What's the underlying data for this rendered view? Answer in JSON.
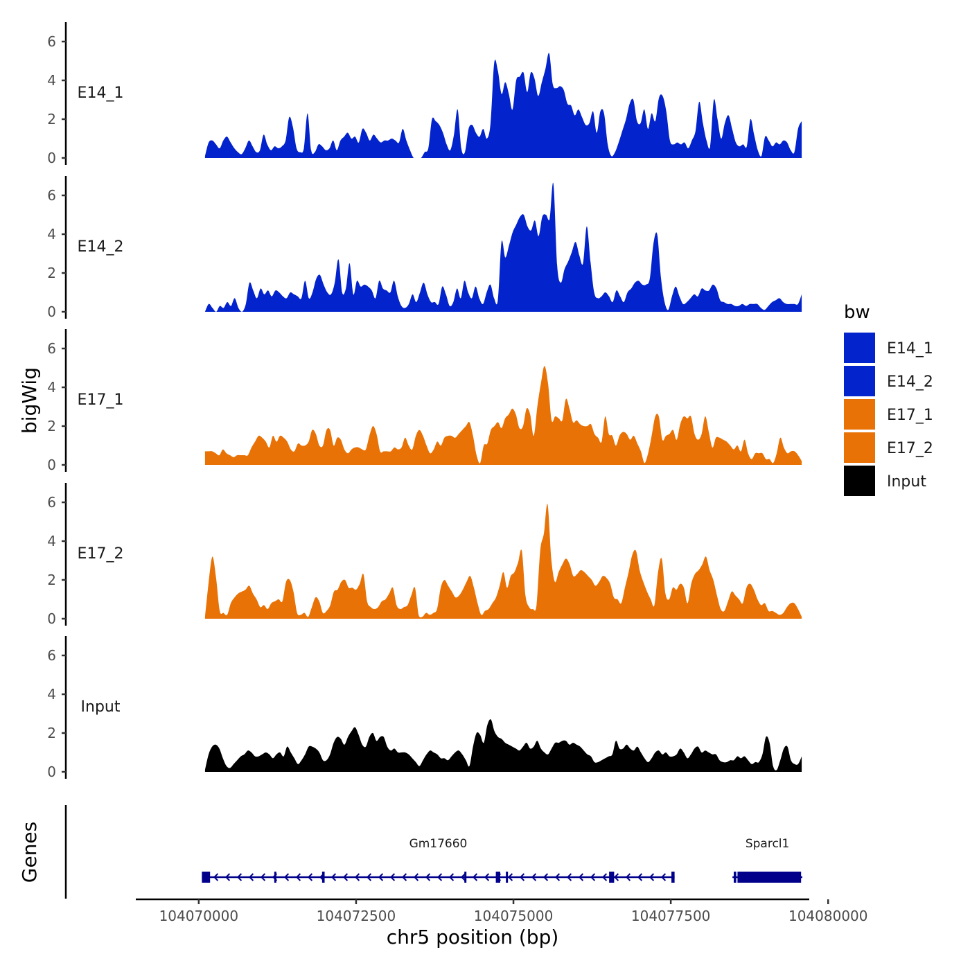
{
  "chart_data": {
    "type": "area",
    "y_axis_title": "bigWig",
    "genes_axis_title": "Genes",
    "x_axis_title": "chr5 position (bp)",
    "xlim": [
      104069000,
      104079700
    ],
    "ylim": [
      0,
      7
    ],
    "y_ticks": [
      "0",
      "2",
      "4",
      "6"
    ],
    "x_ticks": [
      {
        "value": 104070000,
        "label": "104070000"
      },
      {
        "value": 104072500,
        "label": "104072500"
      },
      {
        "value": 104075000,
        "label": "104075000"
      },
      {
        "value": 104077500,
        "label": "104077500"
      },
      {
        "value": 104080000,
        "label": "104080000"
      }
    ],
    "legend": {
      "title": "bw",
      "entries": [
        {
          "label": "E14_1",
          "color": "#0323CC"
        },
        {
          "label": "E14_2",
          "color": "#0323CC"
        },
        {
          "label": "E17_1",
          "color": "#E87206"
        },
        {
          "label": "E17_2",
          "color": "#E87206"
        },
        {
          "label": "Input",
          "color": "#000000"
        }
      ]
    },
    "x_start": 104070100,
    "x_end": 104079580,
    "series": [
      {
        "name": "E14_1",
        "color": "#0323CC",
        "values": [
          0.1,
          0.8,
          0.9,
          0.7,
          0.5,
          0.9,
          1.1,
          0.8,
          0.5,
          0.3,
          0.2,
          0.5,
          0.9,
          0.6,
          0.3,
          0.4,
          1.2,
          0.7,
          0.4,
          0.6,
          0.5,
          0.6,
          0.9,
          2.1,
          1.6,
          0.5,
          0.3,
          0.5,
          2.3,
          0.4,
          0.3,
          0.7,
          0.6,
          0.4,
          0.5,
          0.9,
          0.4,
          0.9,
          1.1,
          1.3,
          1.0,
          1.1,
          0.8,
          1.5,
          1.3,
          0.9,
          1.2,
          1.0,
          0.8,
          0.9,
          0.9,
          1.0,
          0.9,
          0.8,
          1.5,
          0.9,
          0.4,
          0.0,
          0.0,
          0.0,
          0.3,
          0.5,
          2.0,
          1.9,
          1.7,
          1.3,
          0.7,
          0.4,
          1.2,
          2.5,
          0.5,
          0.3,
          1.5,
          1.7,
          1.3,
          1.1,
          1.5,
          1.0,
          1.8,
          4.9,
          4.5,
          3.3,
          3.9,
          3.3,
          2.5,
          4.0,
          4.2,
          4.4,
          3.4,
          4.4,
          4.1,
          3.2,
          3.9,
          4.6,
          5.4,
          3.8,
          3.6,
          3.7,
          3.5,
          2.8,
          2.7,
          2.2,
          2.5,
          2.1,
          1.7,
          1.8,
          2.4,
          1.3,
          2.4,
          2.3,
          0.7,
          0.1,
          0.3,
          0.8,
          1.4,
          2.0,
          2.8,
          3.0,
          1.9,
          1.8,
          2.5,
          1.5,
          2.3,
          1.9,
          3.1,
          3.2,
          2.4,
          0.9,
          0.7,
          0.8,
          0.7,
          0.8,
          0.5,
          0.9,
          1.4,
          2.9,
          1.8,
          0.9,
          0.6,
          3.0,
          2.0,
          1.0,
          1.8,
          2.2,
          1.5,
          0.8,
          0.6,
          0.7,
          0.6,
          2.0,
          1.2,
          0.4,
          0.1,
          1.1,
          0.9,
          0.6,
          0.8,
          0.7,
          0.9,
          0.8,
          0.4,
          0.3,
          1.5,
          1.9
        ]
      },
      {
        "name": "E14_2",
        "color": "#0323CC",
        "values": [
          0.0,
          0.4,
          0.2,
          0.0,
          0.3,
          0.2,
          0.5,
          0.3,
          0.7,
          0.2,
          0.0,
          0.4,
          1.5,
          1.1,
          0.7,
          1.2,
          0.9,
          1.1,
          0.8,
          1.1,
          1.0,
          0.8,
          0.7,
          1.0,
          0.9,
          0.8,
          0.7,
          1.6,
          0.7,
          1.0,
          1.7,
          1.9,
          1.4,
          1.0,
          0.9,
          1.5,
          2.7,
          1.0,
          1.2,
          2.5,
          0.9,
          1.6,
          1.3,
          1.4,
          1.3,
          1.1,
          0.7,
          1.6,
          1.2,
          1.1,
          1.0,
          1.6,
          0.8,
          0.3,
          0.2,
          0.4,
          0.9,
          0.5,
          1.0,
          1.5,
          0.9,
          0.5,
          0.5,
          0.4,
          1.3,
          0.9,
          0.3,
          0.5,
          1.2,
          0.7,
          1.6,
          1.0,
          0.7,
          1.3,
          0.7,
          0.4,
          1.0,
          1.4,
          0.7,
          0.6,
          3.6,
          2.8,
          3.4,
          4.1,
          4.5,
          4.9,
          5.0,
          4.4,
          4.2,
          4.7,
          3.9,
          4.9,
          5.0,
          4.8,
          6.6,
          2.4,
          1.5,
          2.2,
          2.6,
          3.1,
          3.6,
          2.9,
          2.5,
          4.4,
          2.6,
          1.0,
          0.7,
          0.8,
          1.0,
          0.8,
          0.5,
          1.1,
          0.8,
          0.5,
          1.0,
          1.2,
          1.5,
          1.6,
          1.4,
          1.4,
          1.7,
          3.5,
          4.0,
          1.8,
          0.5,
          0.1,
          0.8,
          1.3,
          0.8,
          0.4,
          0.5,
          0.7,
          0.9,
          0.8,
          1.2,
          1.1,
          1.1,
          1.4,
          1.2,
          0.6,
          0.5,
          0.4,
          0.4,
          0.3,
          0.3,
          0.4,
          0.3,
          0.4,
          0.4,
          0.4,
          0.2,
          0.1,
          0.3,
          0.5,
          0.6,
          0.7,
          0.5,
          0.4,
          0.4,
          0.4,
          0.4,
          0.9
        ]
      },
      {
        "name": "E17_1",
        "color": "#E87206",
        "values": [
          0.7,
          0.7,
          0.7,
          0.6,
          0.5,
          0.8,
          0.6,
          0.5,
          0.4,
          0.5,
          0.5,
          0.5,
          0.5,
          0.9,
          1.2,
          1.5,
          1.4,
          1.2,
          0.9,
          1.5,
          1.2,
          1.5,
          1.4,
          1.2,
          0.8,
          0.7,
          1.1,
          1.0,
          1.0,
          1.2,
          1.8,
          1.6,
          1.0,
          1.0,
          1.8,
          1.8,
          1.0,
          1.4,
          1.3,
          0.8,
          0.6,
          0.8,
          0.9,
          0.9,
          0.8,
          0.8,
          1.5,
          2.0,
          1.6,
          0.7,
          0.7,
          0.7,
          0.7,
          0.9,
          0.8,
          0.9,
          1.4,
          1.0,
          0.8,
          1.5,
          1.8,
          1.5,
          1.0,
          0.6,
          0.8,
          1.2,
          1.0,
          1.4,
          1.5,
          1.5,
          1.4,
          1.6,
          1.8,
          2.0,
          2.2,
          1.5,
          0.5,
          0.1,
          1.0,
          1.1,
          1.8,
          2.0,
          2.2,
          1.9,
          2.4,
          2.6,
          2.9,
          2.6,
          1.9,
          2.0,
          2.9,
          2.6,
          1.5,
          3.0,
          4.2,
          5.1,
          4.2,
          2.3,
          2.5,
          2.4,
          2.3,
          3.4,
          2.9,
          2.2,
          2.3,
          2.1,
          2.0,
          2.0,
          2.1,
          1.6,
          1.4,
          1.2,
          2.5,
          1.6,
          1.5,
          1.0,
          1.5,
          1.7,
          1.6,
          1.3,
          1.5,
          1.1,
          0.7,
          0.1,
          0.6,
          1.5,
          2.5,
          2.5,
          1.3,
          1.5,
          1.6,
          1.8,
          1.3,
          2.1,
          2.5,
          2.4,
          2.5,
          1.6,
          1.3,
          1.6,
          2.5,
          1.7,
          0.9,
          1.4,
          1.4,
          1.3,
          1.2,
          1.0,
          0.8,
          1.0,
          0.7,
          1.3,
          0.6,
          0.3,
          0.6,
          0.6,
          0.6,
          0.3,
          0.3,
          0.1,
          0.6,
          1.4,
          0.9,
          0.6,
          0.7,
          0.7,
          0.5,
          0.2
        ]
      },
      {
        "name": "E17_2",
        "color": "#E87206",
        "values": [
          0.1,
          1.9,
          3.2,
          2.1,
          0.4,
          0.3,
          0.2,
          0.8,
          1.1,
          1.3,
          1.4,
          1.5,
          1.7,
          1.3,
          1.0,
          0.6,
          0.7,
          0.5,
          0.8,
          0.9,
          1.0,
          0.9,
          1.9,
          2.0,
          1.4,
          0.3,
          0.2,
          0.3,
          0.1,
          0.6,
          1.1,
          0.9,
          0.3,
          0.4,
          0.7,
          1.4,
          1.5,
          1.9,
          2.0,
          1.6,
          1.6,
          1.5,
          1.8,
          2.3,
          0.9,
          0.6,
          0.5,
          0.6,
          0.9,
          1.0,
          1.3,
          1.6,
          0.7,
          0.5,
          0.6,
          0.7,
          1.2,
          1.6,
          0.2,
          0.1,
          0.3,
          0.2,
          0.3,
          0.5,
          1.6,
          2.0,
          1.7,
          1.4,
          1.1,
          1.2,
          1.5,
          1.9,
          2.2,
          1.6,
          0.8,
          0.2,
          0.4,
          0.5,
          0.8,
          1.1,
          1.7,
          2.4,
          1.6,
          2.2,
          2.4,
          2.9,
          3.5,
          1.2,
          0.6,
          0.5,
          0.7,
          3.5,
          4.4,
          5.9,
          3.1,
          1.9,
          2.4,
          2.8,
          3.1,
          2.8,
          2.2,
          2.3,
          2.5,
          2.4,
          2.2,
          2.0,
          1.7,
          1.9,
          2.2,
          2.1,
          1.8,
          1.1,
          1.0,
          0.8,
          1.6,
          2.4,
          3.3,
          3.5,
          2.5,
          1.9,
          1.4,
          1.0,
          0.7,
          2.4,
          3.1,
          1.3,
          1.0,
          1.6,
          1.5,
          1.8,
          1.6,
          0.8,
          1.8,
          2.3,
          2.5,
          2.8,
          3.2,
          2.5,
          2.0,
          1.2,
          0.5,
          0.4,
          0.9,
          1.4,
          1.2,
          1.0,
          0.8,
          1.6,
          1.8,
          1.5,
          1.0,
          0.7,
          0.8,
          0.4,
          0.4,
          0.3,
          0.2,
          0.3,
          0.6,
          0.8,
          0.8,
          0.5,
          0.1
        ]
      },
      {
        "name": "Input",
        "color": "#000000",
        "values": [
          0.1,
          0.9,
          1.3,
          1.4,
          1.2,
          0.7,
          0.3,
          0.2,
          0.4,
          0.6,
          0.8,
          0.9,
          1.1,
          1.0,
          0.8,
          0.8,
          0.9,
          1.0,
          0.9,
          0.7,
          0.9,
          1.0,
          0.8,
          1.3,
          1.0,
          0.7,
          0.4,
          0.6,
          0.9,
          1.3,
          1.3,
          1.2,
          1.0,
          0.6,
          0.6,
          0.9,
          1.5,
          1.8,
          1.7,
          1.4,
          1.8,
          2.1,
          2.3,
          1.9,
          1.4,
          1.3,
          1.8,
          2.0,
          1.6,
          1.8,
          1.8,
          1.3,
          1.1,
          1.2,
          1.0,
          1.0,
          1.0,
          0.9,
          0.7,
          0.5,
          0.3,
          0.6,
          0.9,
          1.1,
          1.0,
          0.9,
          0.7,
          0.7,
          0.6,
          0.8,
          1.0,
          1.1,
          0.9,
          0.6,
          0.3,
          1.3,
          2.0,
          1.9,
          1.5,
          2.4,
          2.7,
          2.1,
          1.8,
          1.7,
          1.5,
          1.4,
          1.3,
          1.2,
          1.1,
          1.3,
          1.5,
          1.2,
          1.3,
          1.6,
          1.2,
          1.0,
          0.9,
          1.2,
          1.5,
          1.5,
          1.6,
          1.6,
          1.4,
          1.5,
          1.4,
          1.3,
          1.1,
          0.9,
          0.8,
          0.5,
          0.5,
          0.6,
          0.7,
          0.8,
          0.9,
          1.6,
          1.2,
          1.2,
          1.4,
          1.2,
          1.1,
          1.3,
          1.0,
          0.7,
          0.5,
          0.7,
          1.0,
          1.1,
          0.9,
          1.0,
          0.8,
          0.8,
          0.9,
          1.2,
          1.0,
          0.7,
          0.9,
          1.2,
          1.3,
          1.0,
          1.1,
          1.0,
          0.9,
          0.9,
          0.6,
          0.5,
          0.5,
          0.6,
          0.6,
          0.8,
          0.7,
          0.8,
          0.6,
          0.4,
          0.5,
          0.5,
          0.9,
          1.8,
          1.5,
          0.3,
          0.1,
          0.6,
          1.2,
          1.3,
          0.6,
          0.4,
          0.4,
          0.8
        ]
      }
    ],
    "genes": [
      {
        "name": "Gm17660",
        "start": 104070050,
        "end": 104077560,
        "strand": "-",
        "exons": [
          [
            104070050,
            104070180
          ],
          [
            104071200,
            104071230
          ],
          [
            104071960,
            104072000
          ],
          [
            104074220,
            104074240
          ],
          [
            104074720,
            104074790
          ],
          [
            104074880,
            104074900
          ],
          [
            104076520,
            104076600
          ],
          [
            104077510,
            104077560
          ]
        ]
      },
      {
        "name": "Sparcl1",
        "start": 104078480,
        "end": 104079590,
        "strand": "+",
        "exons": [
          [
            104078500,
            104078540
          ],
          [
            104078560,
            104079570
          ]
        ]
      }
    ]
  }
}
